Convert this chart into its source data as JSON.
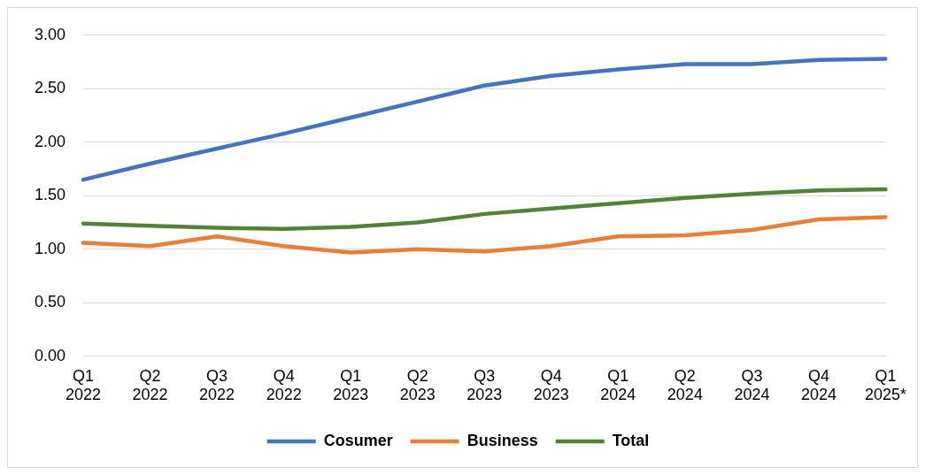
{
  "chart_data": {
    "type": "line",
    "categories": [
      "Q1 2022",
      "Q2 2022",
      "Q3 2022",
      "Q4 2022",
      "Q1 2023",
      "Q2 2023",
      "Q3 2023",
      "Q4 2023",
      "Q1 2024",
      "Q2 2024",
      "Q3 2024",
      "Q4 2024",
      "Q1 2025*"
    ],
    "series": [
      {
        "name": "Cosumer",
        "color": "#4472c4",
        "values": [
          1.65,
          1.8,
          1.94,
          2.08,
          2.23,
          2.38,
          2.53,
          2.62,
          2.68,
          2.73,
          2.73,
          2.77,
          2.78
        ]
      },
      {
        "name": "Business",
        "color": "#ed7d31",
        "values": [
          1.06,
          1.03,
          1.12,
          1.03,
          0.97,
          1.0,
          0.98,
          1.03,
          1.12,
          1.13,
          1.18,
          1.28,
          1.3
        ]
      },
      {
        "name": "Total",
        "color": "#548235",
        "values": [
          1.24,
          1.22,
          1.2,
          1.19,
          1.21,
          1.25,
          1.33,
          1.38,
          1.43,
          1.48,
          1.52,
          1.55,
          1.56
        ]
      }
    ],
    "ylim": [
      0,
      3
    ],
    "yticks": [
      {
        "value": 0,
        "label": "0.00"
      },
      {
        "value": 0.5,
        "label": "0.50"
      },
      {
        "value": 1,
        "label": "1.00"
      },
      {
        "value": 1.5,
        "label": "1.50"
      },
      {
        "value": 2,
        "label": "2.00"
      },
      {
        "value": 2.5,
        "label": "2.50"
      },
      {
        "value": 3,
        "label": "3.00"
      }
    ],
    "grid": "y",
    "legend": "bottom",
    "marker": "none",
    "line_style": "solid"
  }
}
